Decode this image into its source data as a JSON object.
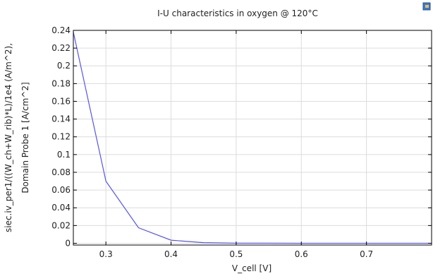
{
  "chart_data": {
    "type": "line",
    "title": "I-U characteristics in oxygen @ 120°C",
    "xlabel": "V_cell  [V]",
    "ylabel_lines": [
      "siec.iv_per1/((W_ch+W_rib)*L)/1e4  (A/m^2),",
      "Domain Probe 1  [A/cm^2]"
    ],
    "xlim": [
      0.25,
      0.8
    ],
    "ylim": [
      -0.002,
      0.24
    ],
    "x_ticks": [
      0.3,
      0.4,
      0.5,
      0.6,
      0.7
    ],
    "x_tick_labels": [
      "0.3",
      "0.4",
      "0.5",
      "0.6",
      "0.7"
    ],
    "y_ticks": [
      0,
      0.02,
      0.04,
      0.06,
      0.08,
      0.1,
      0.12,
      0.14,
      0.16,
      0.18,
      0.2,
      0.22,
      0.24
    ],
    "y_tick_labels": [
      "0",
      "0.02",
      "0.04",
      "0.06",
      "0.08",
      "0.1",
      "0.12",
      "0.14",
      "0.16",
      "0.18",
      "0.2",
      "0.22",
      "0.24"
    ],
    "grid": true,
    "series": [
      {
        "color": "#5555ee",
        "x": [
          0.25,
          0.3,
          0.35,
          0.4,
          0.45,
          0.5,
          0.55,
          0.6,
          0.65,
          0.7,
          0.75,
          0.8
        ],
        "y": [
          0.238,
          0.07,
          0.0175,
          0.0035,
          0.0007,
          0.0001,
          5e-05,
          2e-05,
          1e-05,
          0.0,
          0.0,
          0.0
        ]
      }
    ]
  },
  "corner_icon": "window-icon"
}
